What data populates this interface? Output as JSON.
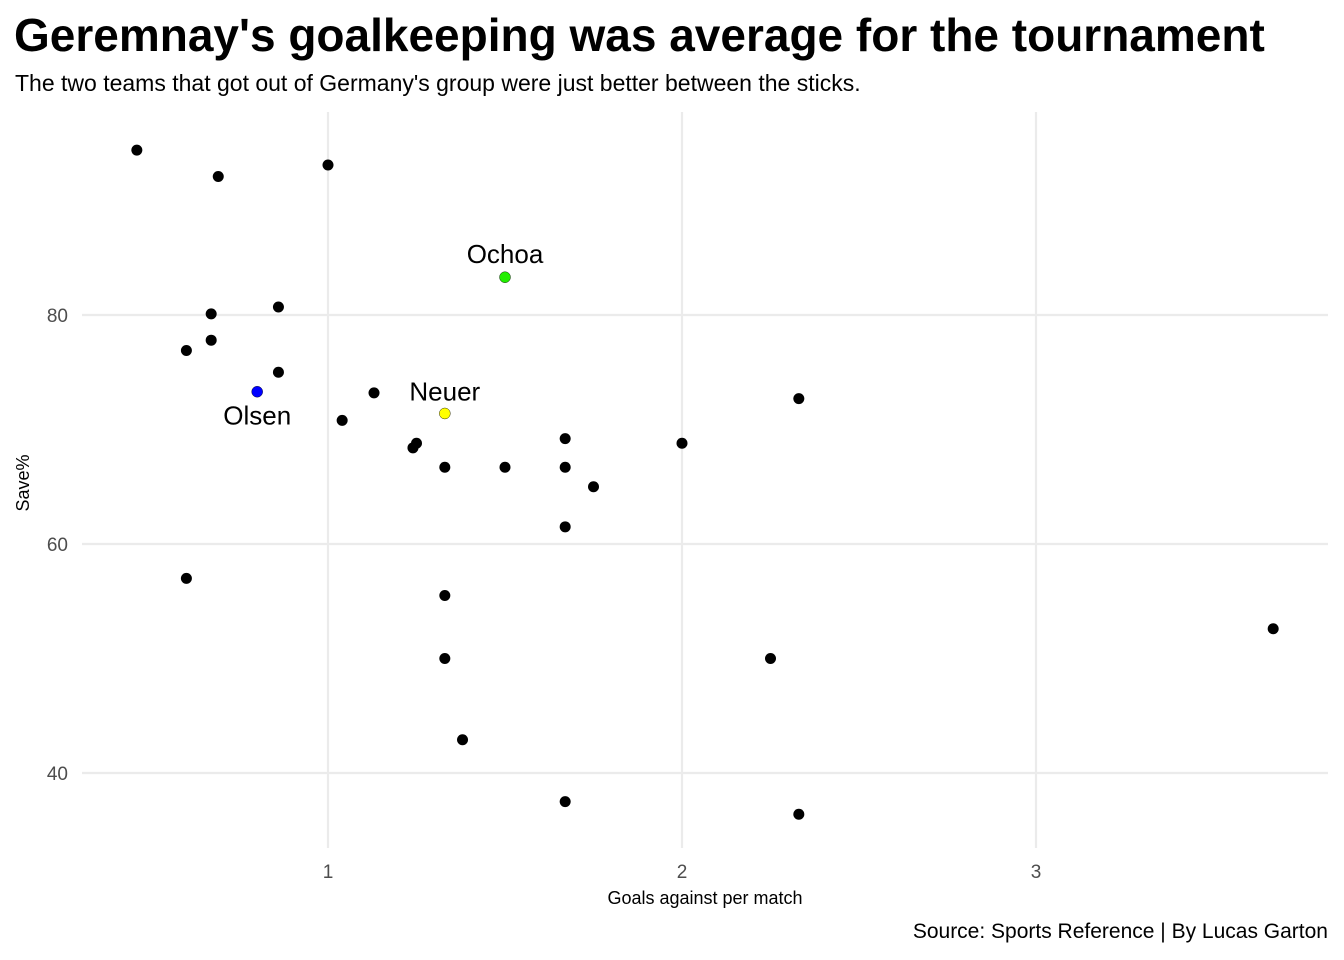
{
  "title": "Geremnay's goalkeeping was average for the tournament",
  "subtitle": "The two teams that got out of Germany's group were just better between the sticks.",
  "caption": "Source: Sports Reference | By Lucas Garton",
  "chart_data": {
    "type": "scatter",
    "xlabel": "Goals against per match",
    "ylabel": "Save%",
    "xlim": [
      0.34,
      3.8
    ],
    "ylim": [
      33.5,
      93
    ],
    "xticks": [
      1,
      2,
      3
    ],
    "yticks": [
      40,
      60,
      80
    ],
    "grid": true,
    "legend": "none",
    "colors": {
      "default": "#000000",
      "Ochoa": "#22ee00",
      "Neuer": "#ffff00",
      "Olsen": "#0000ff",
      "grid": "#ebebeb"
    },
    "points": [
      {
        "x": 0.46,
        "y": 94.4
      },
      {
        "x": 0.69,
        "y": 92.1
      },
      {
        "x": 1.0,
        "y": 93.1
      },
      {
        "x": 0.67,
        "y": 80.1
      },
      {
        "x": 0.86,
        "y": 80.7
      },
      {
        "x": 0.6,
        "y": 76.9
      },
      {
        "x": 0.67,
        "y": 77.8
      },
      {
        "x": 0.86,
        "y": 75.0
      },
      {
        "x": 1.5,
        "y": 83.3,
        "label": "Ochoa",
        "highlight": "Ochoa"
      },
      {
        "x": 0.8,
        "y": 73.3,
        "label": "Olsen",
        "highlight": "Olsen"
      },
      {
        "x": 1.33,
        "y": 71.4,
        "label": "Neuer",
        "highlight": "Neuer"
      },
      {
        "x": 1.13,
        "y": 73.2
      },
      {
        "x": 1.04,
        "y": 70.8
      },
      {
        "x": 1.24,
        "y": 68.4
      },
      {
        "x": 1.25,
        "y": 68.8
      },
      {
        "x": 1.33,
        "y": 66.7
      },
      {
        "x": 1.5,
        "y": 66.7
      },
      {
        "x": 1.67,
        "y": 69.2
      },
      {
        "x": 1.67,
        "y": 66.7
      },
      {
        "x": 1.75,
        "y": 65.0
      },
      {
        "x": 1.67,
        "y": 61.5
      },
      {
        "x": 2.0,
        "y": 68.8
      },
      {
        "x": 2.33,
        "y": 72.7
      },
      {
        "x": 0.6,
        "y": 57.0
      },
      {
        "x": 1.33,
        "y": 55.5
      },
      {
        "x": 1.33,
        "y": 50.0
      },
      {
        "x": 2.25,
        "y": 50.0
      },
      {
        "x": 3.67,
        "y": 52.6
      },
      {
        "x": 1.38,
        "y": 42.9
      },
      {
        "x": 1.67,
        "y": 37.5
      },
      {
        "x": 2.33,
        "y": 36.4
      }
    ]
  }
}
